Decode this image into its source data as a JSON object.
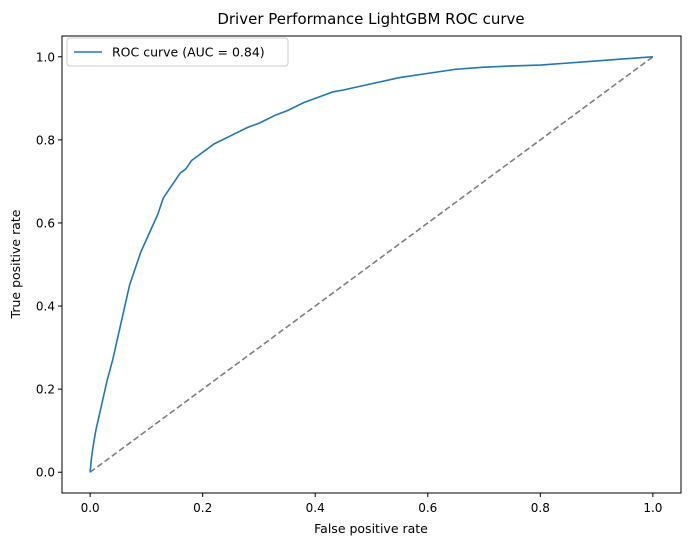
{
  "chart_data": {
    "type": "line",
    "title": "Driver Performance LightGBM ROC curve",
    "xlabel": "False positive rate",
    "ylabel": "True positive rate",
    "xlim": [
      -0.05,
      1.05
    ],
    "ylim": [
      -0.05,
      1.05
    ],
    "xticks": [
      0.0,
      0.2,
      0.4,
      0.6,
      0.8,
      1.0
    ],
    "xtick_labels": [
      "0.0",
      "0.2",
      "0.4",
      "0.6",
      "0.8",
      "1.0"
    ],
    "yticks": [
      0.0,
      0.2,
      0.4,
      0.6,
      0.8,
      1.0
    ],
    "ytick_labels": [
      "0.0",
      "0.2",
      "0.4",
      "0.6",
      "0.8",
      "1.0"
    ],
    "grid": false,
    "legend_position": "upper-left",
    "series": [
      {
        "name": "ROC curve (AUC = 0.84)",
        "color": "#1f77b4",
        "style": "solid",
        "x": [
          0.0,
          0.002,
          0.005,
          0.01,
          0.015,
          0.02,
          0.03,
          0.04,
          0.05,
          0.06,
          0.07,
          0.08,
          0.09,
          0.1,
          0.11,
          0.12,
          0.13,
          0.14,
          0.15,
          0.16,
          0.17,
          0.18,
          0.19,
          0.2,
          0.22,
          0.25,
          0.28,
          0.3,
          0.33,
          0.35,
          0.38,
          0.4,
          0.43,
          0.45,
          0.5,
          0.55,
          0.6,
          0.65,
          0.7,
          0.75,
          0.8,
          0.85,
          0.9,
          0.95,
          1.0
        ],
        "y": [
          0.0,
          0.03,
          0.06,
          0.1,
          0.13,
          0.16,
          0.22,
          0.27,
          0.33,
          0.39,
          0.45,
          0.49,
          0.53,
          0.56,
          0.59,
          0.62,
          0.66,
          0.68,
          0.7,
          0.72,
          0.73,
          0.75,
          0.76,
          0.77,
          0.79,
          0.81,
          0.83,
          0.84,
          0.86,
          0.87,
          0.89,
          0.9,
          0.915,
          0.92,
          0.935,
          0.95,
          0.96,
          0.97,
          0.975,
          0.978,
          0.98,
          0.985,
          0.99,
          0.995,
          1.0
        ]
      },
      {
        "name": "",
        "color": "#7f7f7f",
        "style": "dashed",
        "x": [
          0.0,
          1.0
        ],
        "y": [
          0.0,
          1.0
        ]
      }
    ]
  }
}
